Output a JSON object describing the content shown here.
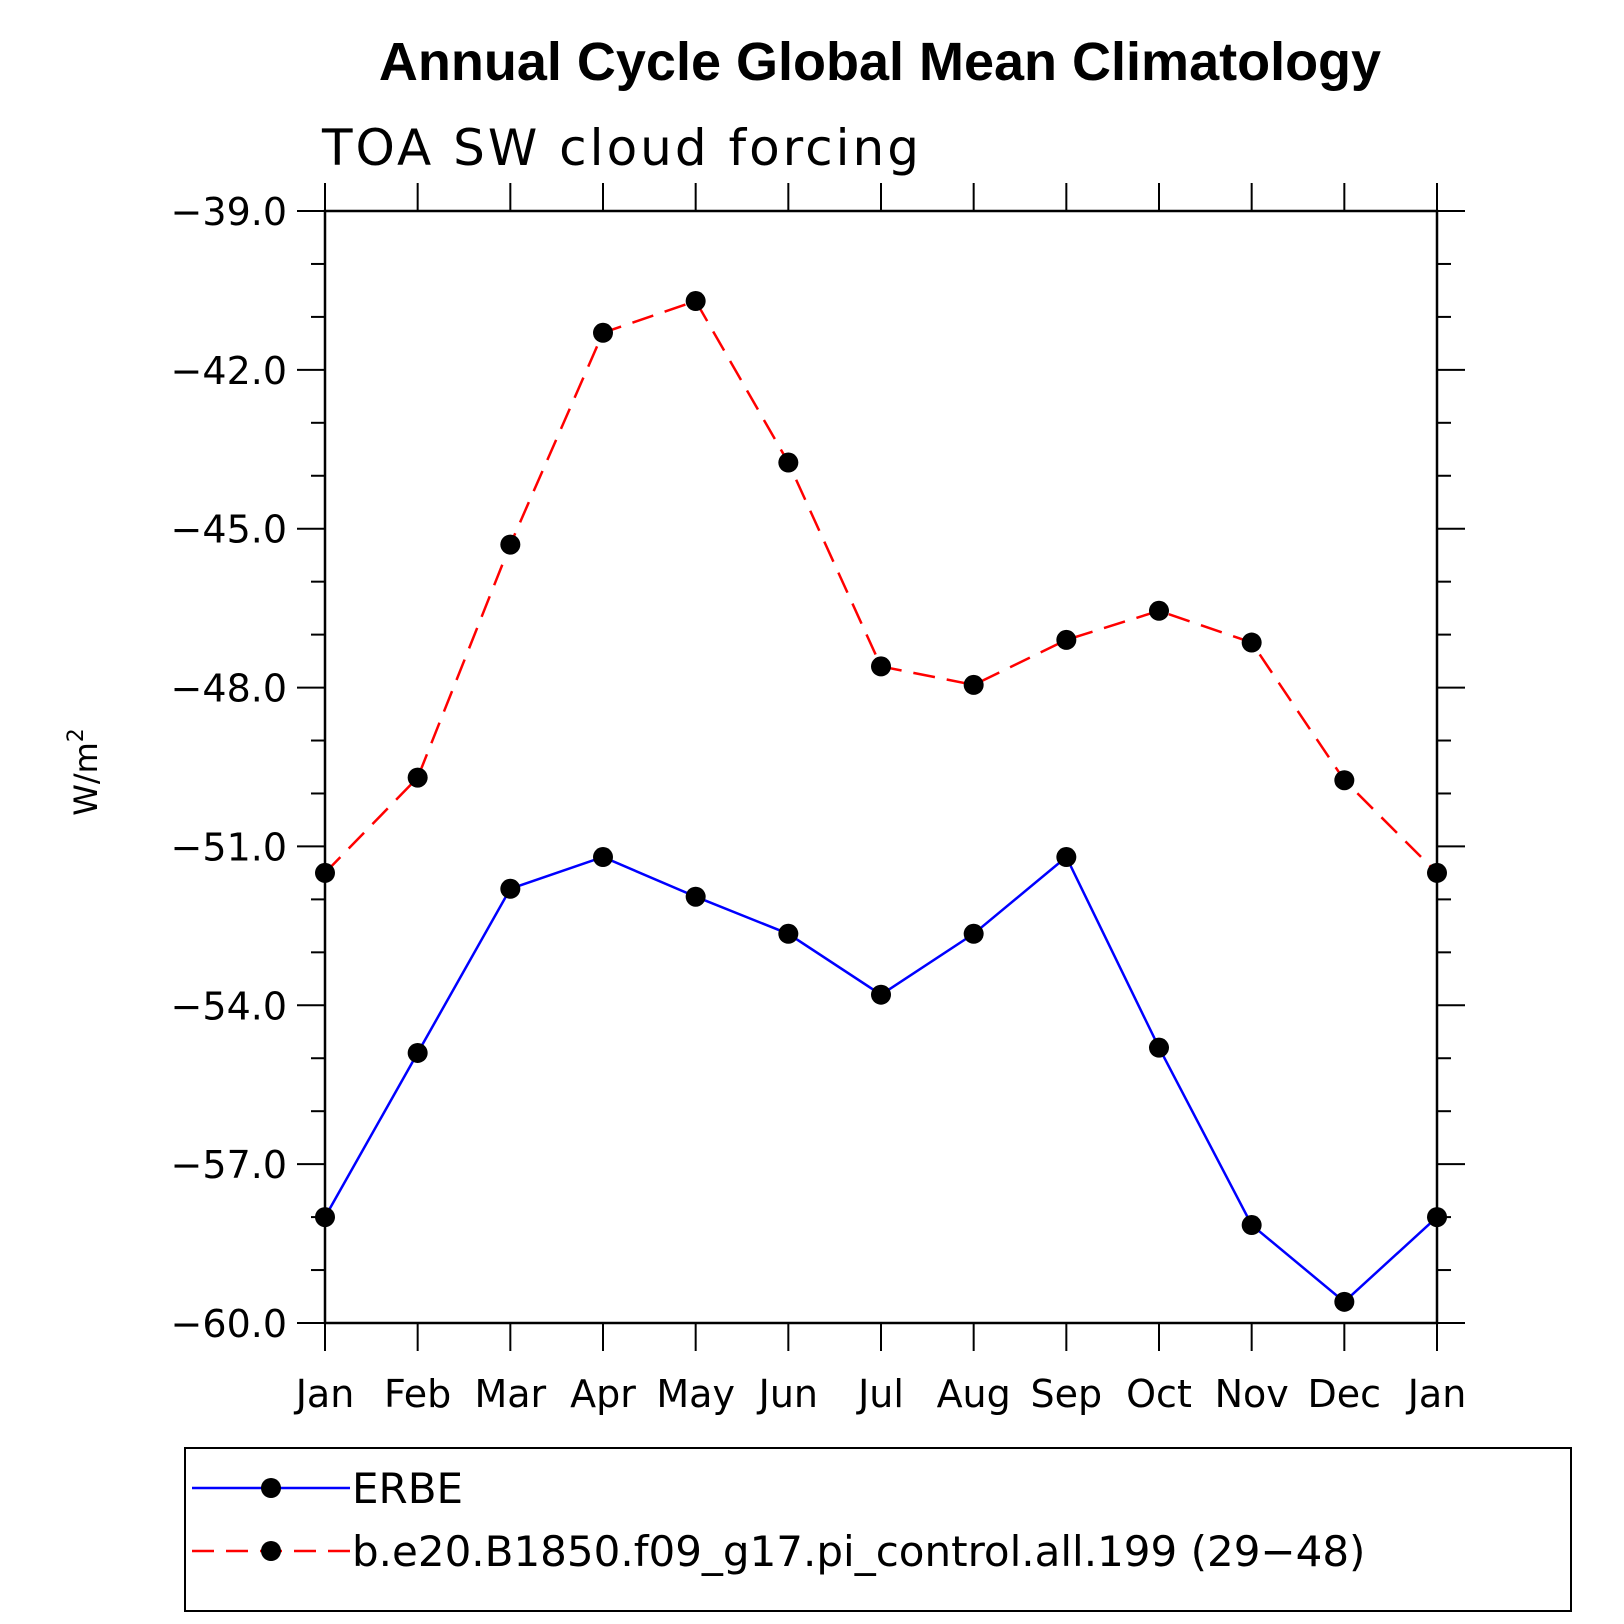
{
  "chart_data": {
    "type": "line",
    "title": "Annual Cycle Global Mean Climatology",
    "subtitle": "TOA SW cloud forcing",
    "ylabel": "W/m",
    "ylabel_sup": "2",
    "xlabel": "",
    "categories": [
      "Jan",
      "Feb",
      "Mar",
      "Apr",
      "May",
      "Jun",
      "Jul",
      "Aug",
      "Sep",
      "Oct",
      "Nov",
      "Dec",
      "Jan"
    ],
    "ylim": [
      -60.0,
      -39.0
    ],
    "yticks": [
      -39.0,
      -42.0,
      -45.0,
      -48.0,
      -51.0,
      -54.0,
      -57.0,
      -60.0
    ],
    "ytick_labels": [
      "−39.0",
      "−42.0",
      "−45.0",
      "−48.0",
      "−51.0",
      "−54.0",
      "−57.0",
      "−60.0"
    ],
    "legend_position": "bottom",
    "series": [
      {
        "name": "ERBE",
        "color": "#0000ff",
        "dash": "solid",
        "values": [
          -58.0,
          -54.9,
          -51.8,
          -51.2,
          -51.95,
          -52.65,
          -53.8,
          -52.65,
          -51.2,
          -54.8,
          -58.15,
          -59.6,
          -58.0
        ]
      },
      {
        "name": "b.e20.B1850.f09_g17.pi_control.all.199 (29−48)",
        "color": "#ff0000",
        "dash": "dashed",
        "values": [
          -51.5,
          -49.7,
          -45.3,
          -41.3,
          -40.7,
          -43.75,
          -47.6,
          -47.95,
          -47.1,
          -46.55,
          -47.15,
          -49.75,
          -51.5
        ]
      }
    ]
  }
}
